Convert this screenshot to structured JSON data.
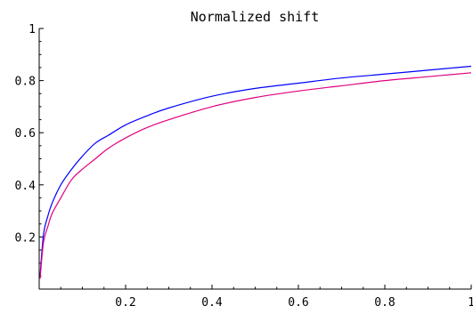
{
  "chart_data": {
    "type": "line",
    "title": "Normalized shift",
    "xlabel": "",
    "ylabel": "",
    "xlim": [
      0,
      1
    ],
    "ylim": [
      0,
      1
    ],
    "grid": false,
    "x_ticks": [
      "0.2",
      "0.4",
      "0.6",
      "0.8",
      "1"
    ],
    "y_ticks": [
      "0.2",
      "0.4",
      "0.6",
      "0.8",
      "1"
    ],
    "series": [
      {
        "color": "#0000ff",
        "x": [
          0.002,
          0.01,
          0.02,
          0.03,
          0.05,
          0.075,
          0.1,
          0.13,
          0.16,
          0.2,
          0.25,
          0.3,
          0.4,
          0.5,
          0.6,
          0.7,
          0.8,
          0.9,
          1.0
        ],
        "y": [
          0.05,
          0.21,
          0.28,
          0.33,
          0.4,
          0.46,
          0.51,
          0.56,
          0.59,
          0.63,
          0.665,
          0.695,
          0.74,
          0.77,
          0.79,
          0.81,
          0.825,
          0.84,
          0.855
        ]
      },
      {
        "color": "#e0007f",
        "x": [
          0.002,
          0.01,
          0.02,
          0.03,
          0.05,
          0.075,
          0.1,
          0.13,
          0.16,
          0.2,
          0.25,
          0.3,
          0.4,
          0.5,
          0.6,
          0.7,
          0.8,
          0.9,
          1.0
        ],
        "y": [
          0.04,
          0.18,
          0.24,
          0.29,
          0.35,
          0.42,
          0.46,
          0.5,
          0.54,
          0.58,
          0.62,
          0.65,
          0.7,
          0.735,
          0.76,
          0.78,
          0.8,
          0.815,
          0.83
        ]
      }
    ]
  }
}
